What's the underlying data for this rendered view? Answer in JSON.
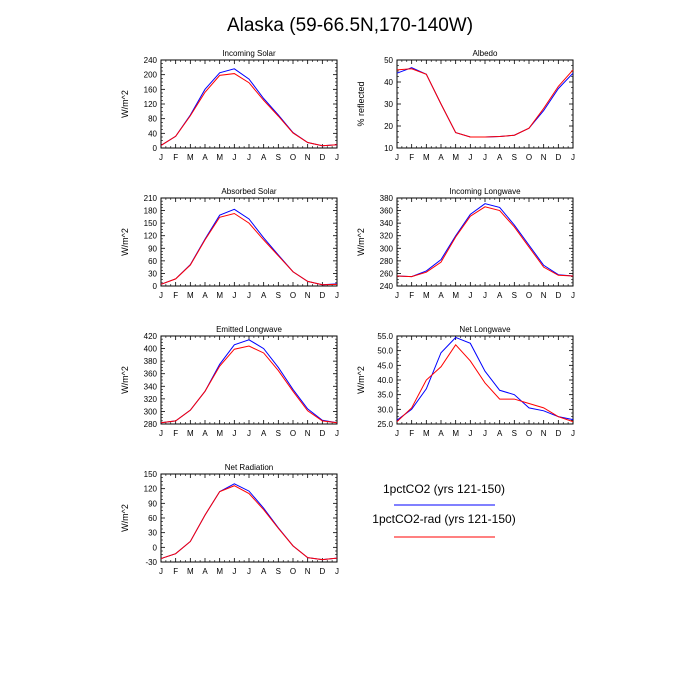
{
  "figure_title": "Alaska (59-66.5N,170-140W)",
  "legend": {
    "series1": {
      "name": "1pctCO2 (yrs 121-150)",
      "color": "#0000ff"
    },
    "series2": {
      "name": "1pctCO2-rad (yrs 121-150)",
      "color": "#ff0000"
    }
  },
  "chart_data": [
    {
      "type": "line",
      "title": "Incoming Solar",
      "xlabel": "",
      "ylabel": "W/m^2",
      "categories": [
        "J",
        "F",
        "M",
        "A",
        "M",
        "J",
        "J",
        "A",
        "S",
        "O",
        "N",
        "D",
        "J"
      ],
      "ylim": [
        0,
        240
      ],
      "yticks": [
        "0",
        "40",
        "80",
        "120",
        "160",
        "200",
        "240"
      ],
      "series": [
        {
          "name": "1pctCO2 (yrs 121-150)",
          "color": "#0000ff",
          "values": [
            7,
            32,
            90,
            160,
            205,
            216,
            188,
            135,
            90,
            42,
            15,
            6,
            9
          ]
        },
        {
          "name": "1pctCO2-rad (yrs 121-150)",
          "color": "#ff0000",
          "values": [
            7,
            32,
            88,
            152,
            198,
            203,
            178,
            130,
            87,
            41,
            15,
            6,
            9
          ]
        }
      ]
    },
    {
      "type": "line",
      "title": "Albedo",
      "xlabel": "",
      "ylabel": "% reflected",
      "categories": [
        "J",
        "F",
        "M",
        "A",
        "M",
        "J",
        "J",
        "A",
        "S",
        "O",
        "N",
        "D",
        "J"
      ],
      "ylim": [
        10,
        50
      ],
      "yticks": [
        "10",
        "20",
        "30",
        "40",
        "50"
      ],
      "series": [
        {
          "name": "1pctCO2 (yrs 121-150)",
          "color": "#0000ff",
          "values": [
            44,
            46.5,
            43.5,
            30,
            17,
            15,
            15,
            15.2,
            15.8,
            19,
            27,
            37,
            44
          ]
        },
        {
          "name": "1pctCO2-rad (yrs 121-150)",
          "color": "#ff0000",
          "values": [
            45.5,
            46,
            43.5,
            30,
            17,
            15,
            15,
            15.2,
            15.8,
            19,
            28,
            38,
            45.5
          ]
        }
      ]
    },
    {
      "type": "line",
      "title": "Absorbed Solar",
      "xlabel": "",
      "ylabel": "W/m^2",
      "categories": [
        "J",
        "F",
        "M",
        "A",
        "M",
        "J",
        "J",
        "A",
        "S",
        "O",
        "N",
        "D",
        "J"
      ],
      "ylim": [
        0,
        210
      ],
      "yticks": [
        "0",
        "30",
        "60",
        "90",
        "120",
        "150",
        "180",
        "210"
      ],
      "series": [
        {
          "name": "1pctCO2 (yrs 121-150)",
          "color": "#0000ff",
          "values": [
            4,
            17,
            51,
            112,
            169,
            183,
            160,
            115,
            74,
            34,
            11,
            3,
            5
          ]
        },
        {
          "name": "1pctCO2-rad (yrs 121-150)",
          "color": "#ff0000",
          "values": [
            4,
            17,
            50,
            110,
            164,
            173,
            150,
            110,
            72,
            34,
            11,
            3,
            4
          ]
        }
      ]
    },
    {
      "type": "line",
      "title": "Incoming Longwave",
      "xlabel": "",
      "ylabel": "W/m^2",
      "categories": [
        "J",
        "F",
        "M",
        "A",
        "M",
        "J",
        "J",
        "A",
        "S",
        "O",
        "N",
        "D",
        "J"
      ],
      "ylim": [
        240,
        380
      ],
      "yticks": [
        "240",
        "260",
        "280",
        "300",
        "320",
        "340",
        "360",
        "380"
      ],
      "series": [
        {
          "name": "1pctCO2 (yrs 121-150)",
          "color": "#0000ff",
          "values": [
            256,
            255,
            264,
            282,
            320,
            354,
            371,
            365,
            337,
            305,
            273,
            258,
            256
          ]
        },
        {
          "name": "1pctCO2-rad (yrs 121-150)",
          "color": "#ff0000",
          "values": [
            256,
            255,
            262,
            278,
            318,
            351,
            366,
            360,
            334,
            302,
            270,
            257,
            256
          ]
        }
      ]
    },
    {
      "type": "line",
      "title": "Emitted Longwave",
      "xlabel": "",
      "ylabel": "W/m^2",
      "categories": [
        "J",
        "F",
        "M",
        "A",
        "M",
        "J",
        "J",
        "A",
        "S",
        "O",
        "N",
        "D",
        "J"
      ],
      "ylim": [
        280,
        420
      ],
      "yticks": [
        "280",
        "300",
        "320",
        "340",
        "360",
        "380",
        "400",
        "420"
      ],
      "series": [
        {
          "name": "1pctCO2 (yrs 121-150)",
          "color": "#0000ff",
          "values": [
            282,
            285,
            302,
            332,
            375,
            406,
            414,
            400,
            370,
            335,
            304,
            286,
            282
          ]
        },
        {
          "name": "1pctCO2-rad (yrs 121-150)",
          "color": "#ff0000",
          "values": [
            282,
            285,
            302,
            332,
            372,
            399,
            404,
            393,
            365,
            332,
            301,
            285,
            282
          ]
        }
      ]
    },
    {
      "type": "line",
      "title": "Net Longwave",
      "xlabel": "",
      "ylabel": "W/m^2",
      "categories": [
        "J",
        "F",
        "M",
        "A",
        "M",
        "J",
        "J",
        "A",
        "S",
        "O",
        "N",
        "D",
        "J"
      ],
      "ylim": [
        25,
        55
      ],
      "yticks": [
        "25.0",
        "30.0",
        "35.0",
        "40.0",
        "45.0",
        "50.0",
        "55.0"
      ],
      "series": [
        {
          "name": "1pctCO2 (yrs 121-150)",
          "color": "#0000ff",
          "values": [
            26.3,
            30,
            37,
            49.3,
            54.5,
            52.5,
            43,
            36.5,
            35,
            30.5,
            29.5,
            27.5,
            26.5
          ]
        },
        {
          "name": "1pctCO2-rad (yrs 121-150)",
          "color": "#ff0000",
          "values": [
            25.8,
            30.5,
            40,
            44.5,
            52,
            46.5,
            39,
            33.5,
            33.5,
            32,
            30.5,
            27.5,
            25.8
          ]
        }
      ]
    },
    {
      "type": "line",
      "title": "Net Radiation",
      "xlabel": "",
      "ylabel": "W/m^2",
      "categories": [
        "J",
        "F",
        "M",
        "A",
        "M",
        "J",
        "J",
        "A",
        "S",
        "O",
        "N",
        "D",
        "J"
      ],
      "ylim": [
        -30,
        150
      ],
      "yticks": [
        "-30",
        "0",
        "30",
        "60",
        "90",
        "120",
        "150"
      ],
      "series": [
        {
          "name": "1pctCO2 (yrs 121-150)",
          "color": "#0000ff",
          "values": [
            -23,
            -13,
            12,
            66,
            114,
            130,
            115,
            80,
            40,
            3,
            -21,
            -25,
            -22
          ]
        },
        {
          "name": "1pctCO2-rad (yrs 121-150)",
          "color": "#ff0000",
          "values": [
            -23,
            -13,
            12,
            66,
            114,
            126,
            110,
            77,
            39,
            3,
            -21,
            -25,
            -22
          ]
        }
      ]
    }
  ]
}
